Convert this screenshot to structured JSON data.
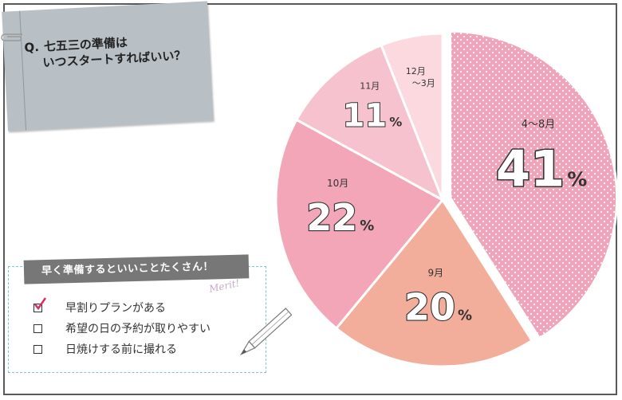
{
  "question": {
    "prefix": "Q.",
    "line1": "七五三の準備は",
    "line2": "いつスタートすればいい？"
  },
  "merits": {
    "title": "早く準備するといいことたくさん！",
    "script_label": "Merit!",
    "items": [
      {
        "text": "早割りプランがある",
        "checked": true
      },
      {
        "text": "希望の日の予約が取りやすい",
        "checked": false
      },
      {
        "text": "日焼けする前に撮れる",
        "checked": false
      }
    ]
  },
  "chart_data": {
    "type": "pie",
    "title": "七五三の準備はいつスタートすればいい？",
    "slices": [
      {
        "label": "4～8月",
        "value": 41,
        "color": "#f1a3b9",
        "pattern": "dots"
      },
      {
        "label": "9月",
        "value": 20,
        "color": "#f3ad9b"
      },
      {
        "label": "10月",
        "value": 22,
        "color": "#f3a6b8"
      },
      {
        "label": "11月",
        "value": 11,
        "color": "#f6c2ce"
      },
      {
        "label": "12月～3月",
        "value": 6,
        "color": "#fbd9df"
      }
    ],
    "unit": "%"
  }
}
